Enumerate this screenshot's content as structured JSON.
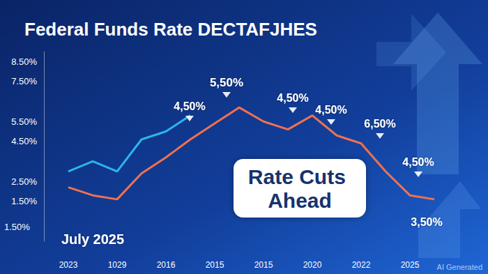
{
  "chart_data": {
    "type": "line",
    "title": "Federal Funds Rate DECTAFJHES",
    "categories": [
      null,
      "2023",
      null,
      "1029",
      null,
      "2016",
      null,
      "2015",
      null,
      "2015",
      null,
      "2020",
      null,
      "2022",
      null,
      "2025",
      null
    ],
    "series": [
      {
        "color": "#f0714f",
        "values": [
          null,
          2.2,
          1.8,
          1.6,
          2.9,
          3.7,
          4.6,
          5.4,
          6.2,
          5.5,
          5.1,
          5.8,
          4.8,
          4.4,
          3.0,
          1.8,
          1.6
        ]
      },
      {
        "color": "#2bb6ea",
        "values": [
          null,
          3.0,
          3.5,
          3.0,
          4.6,
          5.0,
          5.8,
          null,
          null,
          null,
          null,
          null,
          null,
          null,
          null,
          null,
          null
        ]
      }
    ],
    "ylim": [
      -0.5,
      9
    ],
    "yticks": [
      {
        "value": 8.5,
        "label": "8.50%"
      },
      {
        "value": 7.5,
        "label": "7.50%"
      },
      {
        "value": 5.5,
        "label": "5.50%"
      },
      {
        "value": 4.5,
        "label": "4.50%"
      },
      {
        "value": 2.5,
        "label": "2.50%"
      },
      {
        "value": 1.5,
        "label": "1.50%"
      }
    ],
    "grid": false,
    "annotations": [
      "5,50%",
      "4,50%",
      "4,50%",
      "4,50%",
      "6,50%",
      "4,50%",
      "3,50%",
      "1.50%",
      "July 2025",
      "Rate Cuts Ahead",
      "AI Generated"
    ]
  }
}
